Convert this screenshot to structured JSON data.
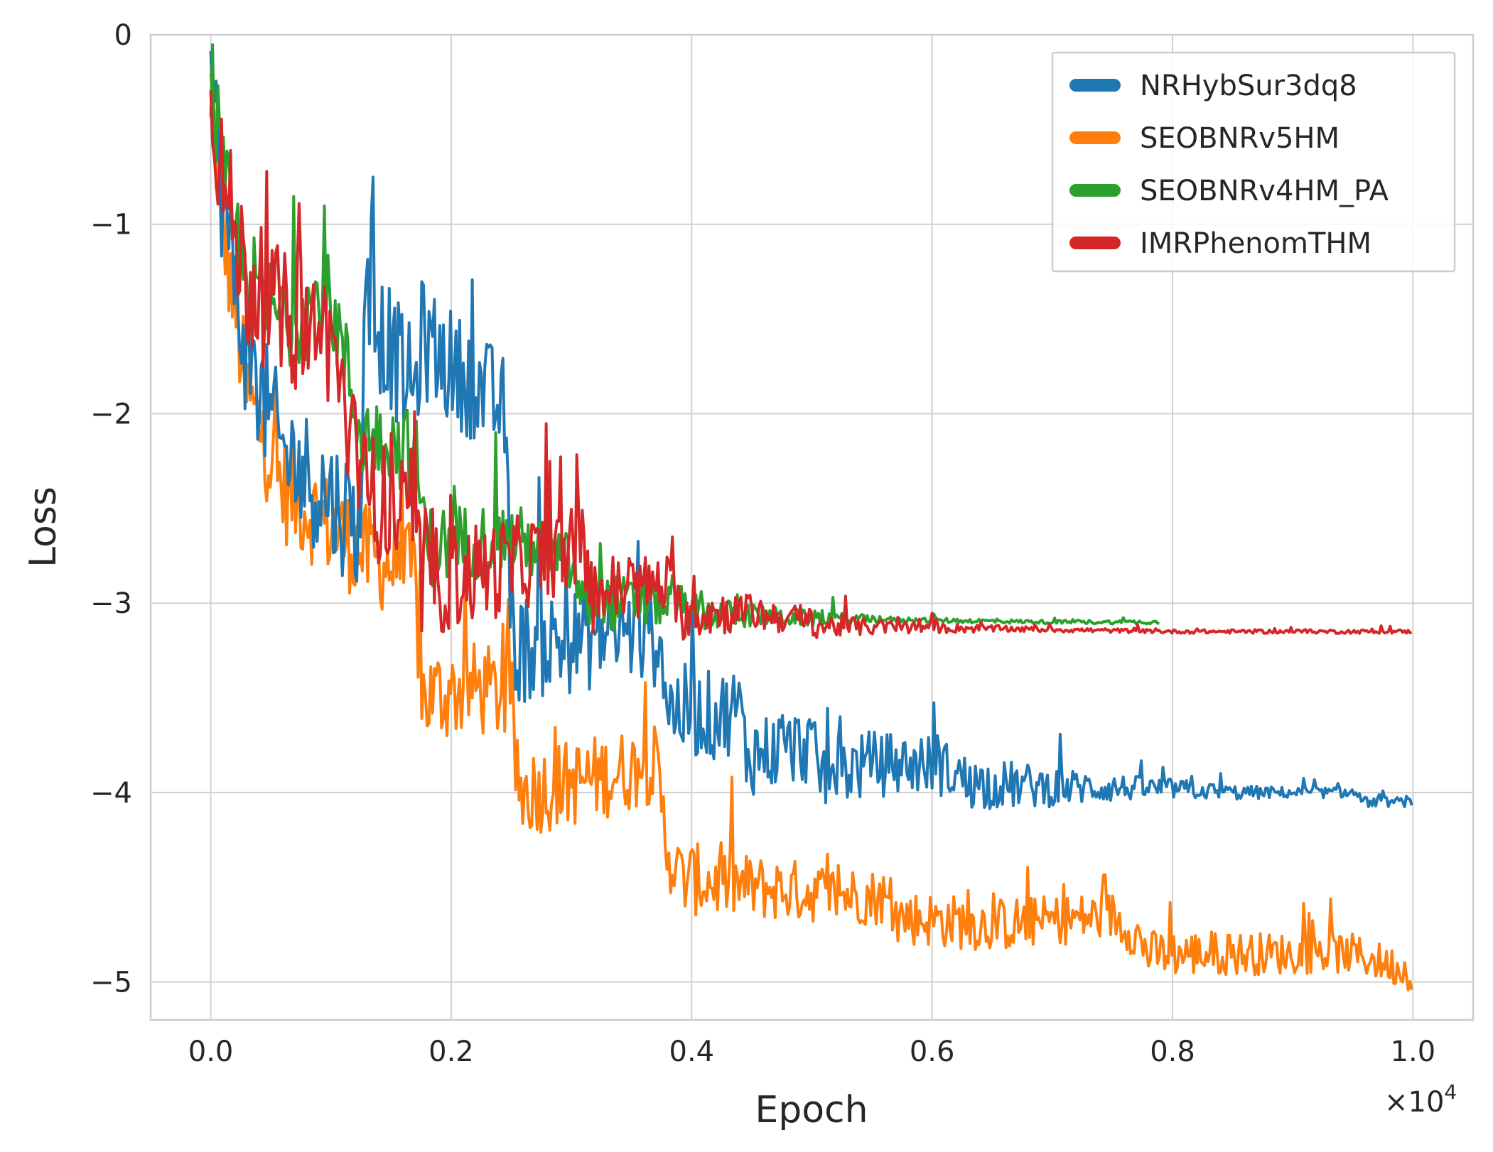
{
  "chart_data": {
    "type": "line",
    "xlabel": "Epoch",
    "ylabel": "Loss",
    "x_scale_label": "×10",
    "x_scale_exponent": "4",
    "xlim": [
      -0.05,
      1.05
    ],
    "ylim": [
      -5.2,
      0
    ],
    "xticks": [
      0.0,
      0.2,
      0.4,
      0.6,
      0.8,
      1.0
    ],
    "xtick_labels": [
      "0.0",
      "0.2",
      "0.4",
      "0.6",
      "0.8",
      "1.0"
    ],
    "yticks": [
      0,
      -1,
      -2,
      -3,
      -4,
      -5
    ],
    "ytick_labels": [
      "0",
      "−1",
      "−2",
      "−3",
      "−4",
      "−5"
    ],
    "grid": true,
    "legend_position": "top-right",
    "series": [
      {
        "name": "NRHybSur3dq8",
        "color": "#1f77b4",
        "noise": [
          0.7,
          0.7,
          0.6,
          0.55,
          0.45,
          0.35,
          0.25,
          0.12,
          0.06,
          0.05
        ],
        "x": [
          0.0,
          0.01,
          0.03,
          0.06,
          0.1,
          0.125,
          0.127,
          0.17,
          0.175,
          0.2,
          0.23,
          0.245,
          0.25,
          0.3,
          0.35,
          0.375,
          0.38,
          0.42,
          0.44,
          0.445,
          0.5,
          0.505,
          0.55,
          0.6,
          0.62,
          0.63,
          0.7,
          0.8,
          0.85,
          0.9,
          0.95,
          0.96,
          1.0
        ],
        "y": [
          -0.2,
          -0.9,
          -1.7,
          -2.2,
          -2.45,
          -2.6,
          -1.4,
          -1.9,
          -1.6,
          -1.75,
          -1.9,
          -2.0,
          -3.25,
          -3.2,
          -3.15,
          -3.2,
          -3.55,
          -3.6,
          -3.55,
          -3.8,
          -3.75,
          -3.9,
          -3.85,
          -3.85,
          -3.9,
          -3.95,
          -3.97,
          -3.98,
          -4.0,
          -4.0,
          -4.0,
          -4.05,
          -4.05
        ]
      },
      {
        "name": "SEOBNRv5HM",
        "color": "#ff7f0e",
        "noise": [
          0.6,
          0.55,
          0.5,
          0.45,
          0.35,
          0.3,
          0.28,
          0.25,
          0.22,
          0.2
        ],
        "x": [
          0.0,
          0.01,
          0.03,
          0.06,
          0.1,
          0.13,
          0.17,
          0.175,
          0.22,
          0.25,
          0.255,
          0.3,
          0.37,
          0.38,
          0.39,
          0.45,
          0.55,
          0.56,
          0.565,
          0.65,
          0.75,
          0.77,
          0.78,
          0.85,
          0.95,
          1.0
        ],
        "y": [
          -0.3,
          -1.0,
          -1.9,
          -2.4,
          -2.6,
          -2.75,
          -2.85,
          -3.5,
          -3.45,
          -3.5,
          -4.0,
          -3.95,
          -3.85,
          -4.3,
          -4.45,
          -4.5,
          -4.55,
          -4.55,
          -4.65,
          -4.7,
          -4.65,
          -4.75,
          -4.85,
          -4.85,
          -4.85,
          -4.95
        ]
      },
      {
        "name": "SEOBNRv4HM_PA",
        "color": "#2ca02c",
        "noise": [
          0.6,
          0.5,
          0.4,
          0.3,
          0.12,
          0.03,
          0.02,
          0.02
        ],
        "x": [
          0.0,
          0.01,
          0.03,
          0.06,
          0.1,
          0.125,
          0.17,
          0.18,
          0.25,
          0.3,
          0.31,
          0.39,
          0.4,
          0.5,
          0.6,
          0.7,
          0.79
        ],
        "y": [
          -0.2,
          -0.8,
          -1.3,
          -1.5,
          -1.4,
          -2.1,
          -2.2,
          -2.7,
          -2.65,
          -2.8,
          -3.0,
          -3.0,
          -3.05,
          -3.08,
          -3.09,
          -3.1,
          -3.1
        ]
      },
      {
        "name": "IMRPhenomTHM",
        "color": "#d62728",
        "noise": [
          0.75,
          0.7,
          0.55,
          0.4,
          0.2,
          0.08,
          0.03,
          0.02,
          0.02,
          0.02
        ],
        "x": [
          0.0,
          0.01,
          0.03,
          0.06,
          0.1,
          0.125,
          0.17,
          0.175,
          0.25,
          0.31,
          0.315,
          0.38,
          0.39,
          0.45,
          0.5,
          0.505,
          0.6,
          0.7,
          0.8,
          0.9,
          1.0
        ],
        "y": [
          -0.2,
          -0.8,
          -1.3,
          -1.5,
          -1.6,
          -2.4,
          -2.6,
          -2.9,
          -2.8,
          -2.7,
          -2.95,
          -2.9,
          -3.05,
          -3.05,
          -3.1,
          -3.12,
          -3.13,
          -3.14,
          -3.15,
          -3.15,
          -3.15
        ]
      }
    ]
  }
}
